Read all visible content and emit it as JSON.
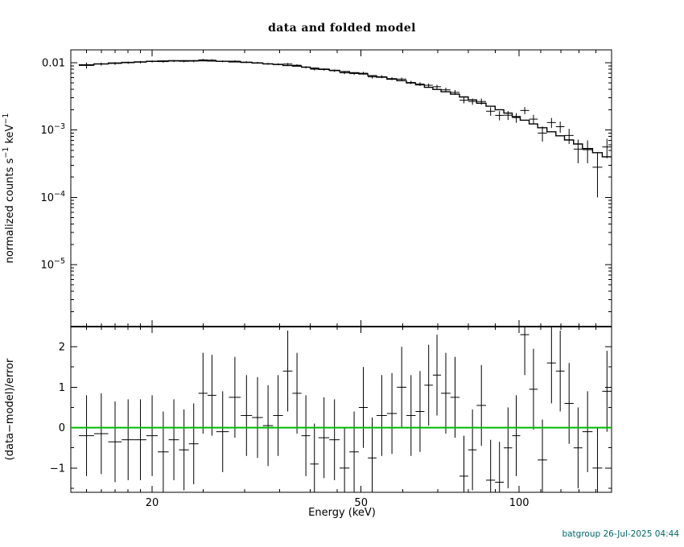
{
  "colors": {
    "footer_text": "#006666"
  },
  "chart_data": {
    "type": "line",
    "subtype": "xspec-spectrum-with-residuals",
    "title": "data and folded model",
    "footer": "batgroup 26-Jul-2025 04:44",
    "x": {
      "label": "Energy (keV)",
      "scale": "log",
      "lim": [
        14,
        150
      ],
      "major_ticks": [
        20,
        50,
        100
      ],
      "minor_ticks": [
        15,
        16,
        17,
        18,
        19,
        25,
        30,
        35,
        40,
        45,
        60,
        70,
        80,
        90,
        110,
        120,
        130,
        140,
        150
      ]
    },
    "panels": {
      "top": {
        "ylabel_parts": [
          "normalized counts s",
          "−1",
          " keV",
          "−1"
        ],
        "yscale": "log",
        "ylim": [
          1.2e-06,
          0.0155
        ],
        "yticks": [
          {
            "v": 0.01,
            "label": "0.01"
          },
          {
            "v": 0.001,
            "label": "10^{−3}"
          },
          {
            "v": 0.0001,
            "label": "10^{−4}"
          },
          {
            "v": 1e-05,
            "label": "10^{−5}"
          }
        ]
      },
      "bottom": {
        "ylabel": "(data−model)/error",
        "yscale": "linear",
        "ylim": [
          -1.6,
          2.5
        ],
        "yticks": [
          -1,
          0,
          1,
          2
        ],
        "yticks_minor": [
          -1.5,
          -0.5,
          0.5,
          1.5
        ],
        "zero_line_color": "#00BB00"
      }
    },
    "bins": {
      "edges": [
        14.5,
        15.5,
        16.5,
        17.5,
        18.5,
        19.5,
        20.5,
        21.5,
        22.5,
        23.5,
        24.5,
        25.5,
        26.5,
        28.0,
        29.5,
        31.0,
        32.5,
        34.0,
        35.5,
        37.0,
        38.5,
        40.0,
        41.5,
        43.5,
        45.5,
        47.5,
        49.5,
        51.5,
        53.5,
        56.0,
        58.5,
        61.0,
        63.5,
        66.0,
        68.5,
        71.0,
        74.0,
        77.0,
        80.0,
        83.0,
        86.5,
        90.0,
        93.5,
        97.0,
        100.5,
        104.5,
        108.5,
        113.0,
        117.5,
        122.0,
        127.0,
        132.0,
        138.0,
        144.0,
        150.0
      ],
      "rate": [
        0.00911,
        0.00953,
        0.00974,
        0.00998,
        0.01018,
        0.01043,
        0.01038,
        0.01059,
        0.01049,
        0.01055,
        0.01102,
        0.0109,
        0.01047,
        0.01053,
        0.01019,
        0.00997,
        0.00962,
        0.00949,
        0.00955,
        0.00916,
        0.00854,
        0.008,
        0.00792,
        0.0076,
        0.00707,
        0.0069,
        0.00697,
        0.00615,
        0.00619,
        0.0058,
        0.0057,
        0.00509,
        0.00482,
        0.00462,
        0.00439,
        0.00395,
        0.00362,
        0.00277,
        0.00265,
        0.00265,
        0.0019,
        0.00165,
        0.00166,
        0.00153,
        0.00195,
        0.00145,
        0.0009,
        0.00129,
        0.00112,
        0.00083,
        0.00052,
        0.00051,
        0.00028,
        0.00056
      ],
      "rate_err": [
        0.00093,
        0.00048,
        0.00045,
        0.0004,
        0.00041,
        0.00037,
        0.00037,
        0.00037,
        0.00037,
        0.00037,
        0.00037,
        0.00037,
        0.00032,
        0.00031,
        0.0003,
        0.0003,
        0.00031,
        0.00031,
        0.00032,
        0.00031,
        0.00032,
        0.00033,
        0.00032,
        0.00032,
        0.00033,
        0.00033,
        0.00034,
        0.00033,
        0.00031,
        0.0003,
        0.0003,
        0.0003,
        0.00031,
        0.0003,
        0.0003,
        0.0003,
        0.00029,
        0.00028,
        0.00028,
        0.00028,
        0.00027,
        0.00026,
        0.00025,
        0.00025,
        0.00024,
        0.00023,
        0.00023,
        0.00022,
        0.00021,
        0.00021,
        0.0002,
        0.00019,
        0.00018,
        0.00018
      ],
      "model": [
        0.0093,
        0.0096,
        0.0099,
        0.0101,
        0.0103,
        0.0105,
        0.0106,
        0.0107,
        0.0107,
        0.0107,
        0.0107,
        0.0106,
        0.0105,
        0.0103,
        0.0101,
        0.0099,
        0.0096,
        0.0094,
        0.0091,
        0.0089,
        0.0086,
        0.0083,
        0.008,
        0.0077,
        0.0074,
        0.0071,
        0.0068,
        0.0064,
        0.0061,
        0.0057,
        0.0054,
        0.005,
        0.0047,
        0.0043,
        0.004,
        0.0037,
        0.0034,
        0.0031,
        0.0028,
        0.0025,
        0.00225,
        0.002,
        0.00178,
        0.00158,
        0.0014,
        0.00123,
        0.00108,
        0.00094,
        0.00082,
        0.00071,
        0.00062,
        0.00053,
        0.00046,
        0.0004
      ],
      "resid": [
        -0.2,
        -0.15,
        -0.35,
        -0.3,
        -0.3,
        -0.2,
        -0.6,
        -0.3,
        -0.55,
        -0.4,
        0.85,
        0.8,
        -0.1,
        0.75,
        0.3,
        0.25,
        0.05,
        0.3,
        1.4,
        0.85,
        -0.2,
        -0.9,
        -0.25,
        -0.3,
        -1.0,
        -0.6,
        0.5,
        -0.75,
        0.3,
        0.35,
        1.0,
        0.3,
        0.4,
        1.05,
        1.3,
        0.85,
        0.75,
        -1.2,
        -0.55,
        0.55,
        -1.3,
        -1.35,
        -0.5,
        -0.2,
        2.3,
        0.95,
        -0.8,
        1.6,
        1.4,
        0.6,
        -0.5,
        -0.1,
        -1.0,
        0.9
      ],
      "resid_err": 1.0
    }
  }
}
